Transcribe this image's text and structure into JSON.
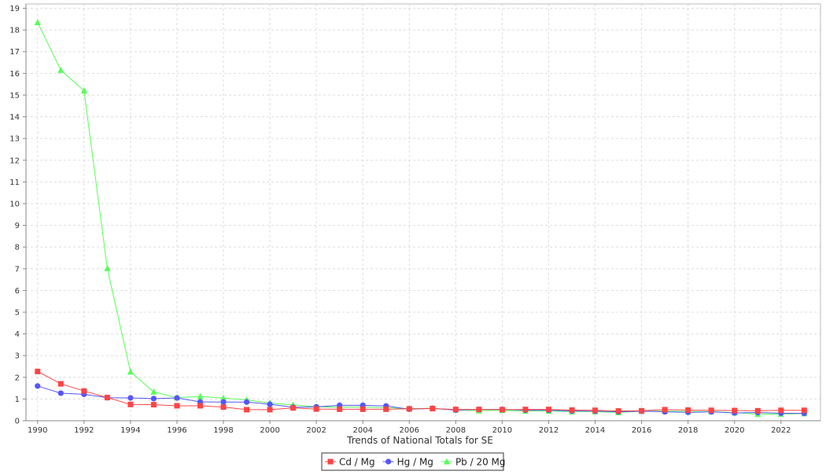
{
  "chart_data": {
    "type": "line",
    "title": "",
    "xlabel": "Trends of National Totals for SE",
    "ylabel": "",
    "x": [
      1990,
      1991,
      1992,
      1993,
      1994,
      1995,
      1996,
      1997,
      1998,
      1999,
      2000,
      2001,
      2002,
      2003,
      2004,
      2005,
      2006,
      2007,
      2008,
      2009,
      2010,
      2011,
      2012,
      2013,
      2014,
      2015,
      2016,
      2017,
      2018,
      2019,
      2020,
      2021,
      2022,
      2023
    ],
    "xlim": [
      1989.5,
      2023.7
    ],
    "ylim": [
      0,
      19.2
    ],
    "x_ticks": [
      "1990",
      "1992",
      "1994",
      "1996",
      "1998",
      "2000",
      "2002",
      "2004",
      "2006",
      "2008",
      "2010",
      "2012",
      "2014",
      "2016",
      "2018",
      "2020",
      "2022"
    ],
    "y_ticks": [
      "0",
      "1",
      "2",
      "3",
      "4",
      "5",
      "6",
      "7",
      "8",
      "9",
      "10",
      "11",
      "12",
      "13",
      "14",
      "15",
      "16",
      "17",
      "18",
      "19"
    ],
    "grid": true,
    "legend_position": "bottom-center",
    "series": [
      {
        "name": "Cd / Mg",
        "color": "#ff4444",
        "marker": "square",
        "values": [
          2.27,
          1.7,
          1.37,
          1.07,
          0.75,
          0.74,
          0.69,
          0.69,
          0.63,
          0.51,
          0.51,
          0.59,
          0.54,
          0.53,
          0.53,
          0.53,
          0.55,
          0.56,
          0.52,
          0.52,
          0.51,
          0.52,
          0.52,
          0.49,
          0.48,
          0.45,
          0.46,
          0.51,
          0.49,
          0.48,
          0.47,
          0.46,
          0.48,
          0.48
        ]
      },
      {
        "name": "Hg / Mg",
        "color": "#5555ff",
        "marker": "circle",
        "values": [
          1.6,
          1.27,
          1.22,
          1.06,
          1.05,
          1.02,
          1.05,
          0.87,
          0.86,
          0.86,
          0.76,
          0.62,
          0.64,
          0.71,
          0.71,
          0.68,
          0.53,
          0.57,
          0.49,
          0.52,
          0.52,
          0.49,
          0.48,
          0.45,
          0.44,
          0.41,
          0.44,
          0.41,
          0.39,
          0.41,
          0.36,
          0.38,
          0.35,
          0.34
        ]
      },
      {
        "name": "Pb / 20 Mg",
        "color": "#55ff55",
        "marker": "triangle",
        "values": [
          18.35,
          16.15,
          15.2,
          7.02,
          2.25,
          1.33,
          1.06,
          1.12,
          1.04,
          0.96,
          0.82,
          0.73,
          0.64,
          0.63,
          0.63,
          0.6,
          0.56,
          0.57,
          0.5,
          0.46,
          0.48,
          0.45,
          0.45,
          0.42,
          0.42,
          0.38,
          0.44,
          0.44,
          0.42,
          0.42,
          0.37,
          0.31,
          0.31,
          0.33
        ]
      }
    ],
    "colors": {
      "grid": "#dddddd",
      "axis": "#888888",
      "plot_border": "#bbbbbb"
    }
  }
}
